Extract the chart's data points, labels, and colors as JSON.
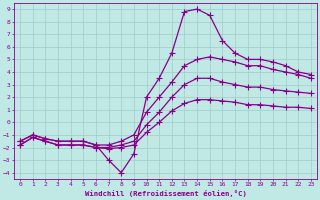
{
  "xlabel": "Windchill (Refroidissement éolien,°C)",
  "bg_color": "#c0e8e4",
  "grid_color": "#a0ccc8",
  "line_color": "#880088",
  "marker": "+",
  "markersize": 4,
  "linewidth": 0.9,
  "xlim": [
    -0.5,
    23.5
  ],
  "ylim": [
    -4.5,
    9.5
  ],
  "xticks": [
    0,
    1,
    2,
    3,
    4,
    5,
    6,
    7,
    8,
    9,
    10,
    11,
    12,
    13,
    14,
    15,
    16,
    17,
    18,
    19,
    20,
    21,
    22,
    23
  ],
  "yticks": [
    -4,
    -3,
    -2,
    -1,
    0,
    1,
    2,
    3,
    4,
    5,
    6,
    7,
    8,
    9
  ],
  "series": [
    {
      "x": [
        0,
        1,
        2,
        3,
        4,
        5,
        6,
        7,
        8,
        9,
        10,
        11,
        12,
        13,
        14,
        15,
        16,
        17,
        18,
        19,
        20,
        21,
        22,
        23
      ],
      "y": [
        -1.5,
        -1.0,
        -1.3,
        -1.5,
        -1.5,
        -1.5,
        -1.8,
        -3.0,
        -4.0,
        -2.5,
        2.0,
        3.5,
        5.5,
        8.8,
        9.0,
        8.5,
        6.5,
        5.5,
        5.0,
        5.0,
        4.8,
        4.5,
        4.0,
        3.8
      ]
    },
    {
      "x": [
        0,
        1,
        2,
        3,
        4,
        5,
        6,
        7,
        8,
        9,
        10,
        11,
        12,
        13,
        14,
        15,
        16,
        17,
        18,
        19,
        20,
        21,
        22,
        23
      ],
      "y": [
        -1.5,
        -1.0,
        -1.3,
        -1.5,
        -1.5,
        -1.5,
        -1.8,
        -1.8,
        -1.5,
        -1.0,
        0.8,
        2.0,
        3.2,
        4.5,
        5.0,
        5.2,
        5.0,
        4.8,
        4.5,
        4.5,
        4.2,
        4.0,
        3.8,
        3.5
      ]
    },
    {
      "x": [
        0,
        1,
        2,
        3,
        4,
        5,
        6,
        7,
        8,
        9,
        10,
        11,
        12,
        13,
        14,
        15,
        16,
        17,
        18,
        19,
        20,
        21,
        22,
        23
      ],
      "y": [
        -1.8,
        -1.2,
        -1.5,
        -1.8,
        -1.8,
        -1.8,
        -2.0,
        -2.0,
        -1.8,
        -1.5,
        -0.2,
        0.8,
        2.0,
        3.0,
        3.5,
        3.5,
        3.2,
        3.0,
        2.8,
        2.8,
        2.6,
        2.5,
        2.4,
        2.3
      ]
    },
    {
      "x": [
        0,
        1,
        2,
        3,
        4,
        5,
        6,
        7,
        8,
        9,
        10,
        11,
        12,
        13,
        14,
        15,
        16,
        17,
        18,
        19,
        20,
        21,
        22,
        23
      ],
      "y": [
        -1.8,
        -1.2,
        -1.5,
        -1.8,
        -1.8,
        -1.8,
        -2.0,
        -2.1,
        -2.0,
        -1.8,
        -0.8,
        0.0,
        0.9,
        1.5,
        1.8,
        1.8,
        1.7,
        1.6,
        1.4,
        1.4,
        1.3,
        1.2,
        1.2,
        1.1
      ]
    }
  ]
}
